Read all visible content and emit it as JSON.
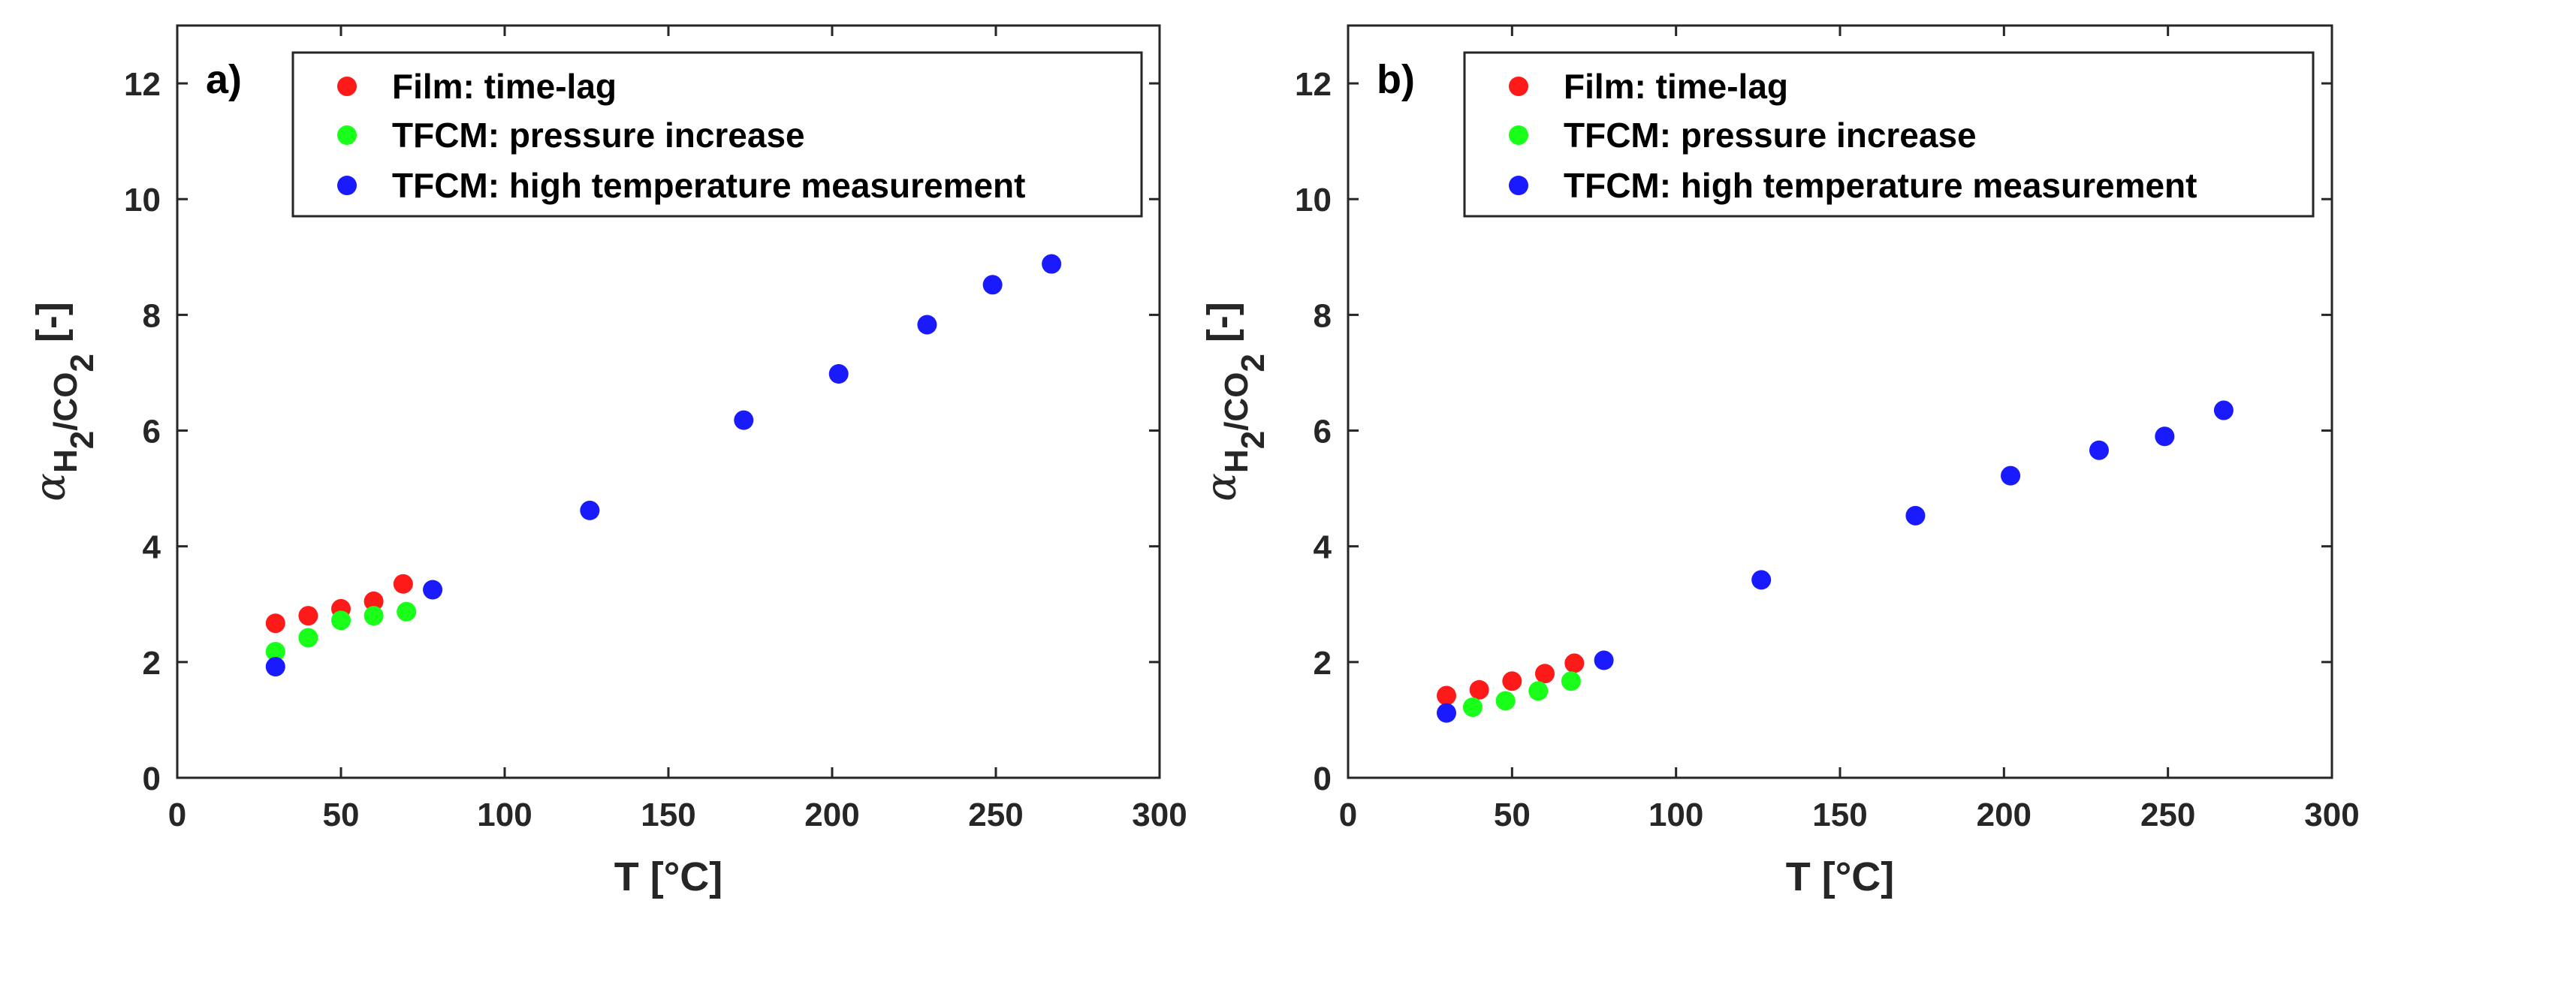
{
  "chart_data": [
    {
      "type": "scatter",
      "panel_label": "a)",
      "xlabel": "T [°C]",
      "ylabel": {
        "symbol": "α",
        "subscript": "H",
        "sub2": "2",
        "sep": "/CO",
        "sub3": "2",
        "unit": "[-]"
      },
      "xlim": [
        0,
        300
      ],
      "ylim": [
        0,
        13
      ],
      "xticks": [
        0,
        50,
        100,
        150,
        200,
        250,
        300
      ],
      "yticks": [
        0,
        2,
        4,
        6,
        8,
        10,
        12
      ],
      "legend_position": "top",
      "series": [
        {
          "name": "Film: time-lag",
          "color": "#ff1a1a",
          "points": [
            [
              30,
              2.67
            ],
            [
              40,
              2.8
            ],
            [
              50,
              2.92
            ],
            [
              60,
              3.05
            ],
            [
              69,
              3.35
            ]
          ]
        },
        {
          "name": "TFCM: pressure increase",
          "color": "#1aff1a",
          "points": [
            [
              30,
              2.18
            ],
            [
              40,
              2.42
            ],
            [
              50,
              2.72
            ],
            [
              60,
              2.8
            ],
            [
              70,
              2.87
            ]
          ]
        },
        {
          "name": "TFCM: high temperature measurement",
          "color": "#1a1aff",
          "points": [
            [
              30,
              1.92
            ],
            [
              78,
              3.25
            ],
            [
              126,
              4.62
            ],
            [
              173,
              6.18
            ],
            [
              202,
              6.98
            ],
            [
              229,
              7.83
            ],
            [
              249,
              8.52
            ],
            [
              267,
              8.88
            ]
          ]
        }
      ]
    },
    {
      "type": "scatter",
      "panel_label": "b)",
      "xlabel": "T [°C]",
      "ylabel": {
        "symbol": "α",
        "subscript": "H",
        "sub2": "2",
        "sep": "/CO",
        "sub3": "2",
        "unit": "[-]"
      },
      "xlim": [
        0,
        300
      ],
      "ylim": [
        0,
        13
      ],
      "xticks": [
        0,
        50,
        100,
        150,
        200,
        250,
        300
      ],
      "yticks": [
        0,
        2,
        4,
        6,
        8,
        10,
        12
      ],
      "legend_position": "top",
      "series": [
        {
          "name": "Film: time-lag",
          "color": "#ff1a1a",
          "points": [
            [
              30,
              1.42
            ],
            [
              40,
              1.52
            ],
            [
              50,
              1.67
            ],
            [
              60,
              1.8
            ],
            [
              69,
              1.98
            ]
          ]
        },
        {
          "name": "TFCM: pressure increase",
          "color": "#1aff1a",
          "points": [
            [
              38,
              1.22
            ],
            [
              48,
              1.33
            ],
            [
              58,
              1.5
            ],
            [
              68,
              1.67
            ]
          ]
        },
        {
          "name": "TFCM: high temperature measurement",
          "color": "#1a1aff",
          "points": [
            [
              30,
              1.12
            ],
            [
              78,
              2.03
            ],
            [
              126,
              3.42
            ],
            [
              173,
              4.53
            ],
            [
              202,
              5.22
            ],
            [
              229,
              5.66
            ],
            [
              249,
              5.9
            ],
            [
              267,
              6.35
            ]
          ]
        }
      ]
    }
  ]
}
